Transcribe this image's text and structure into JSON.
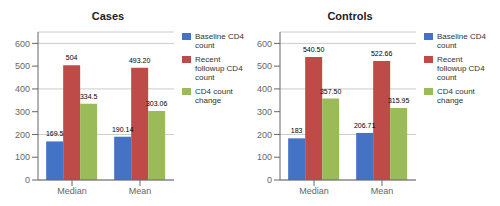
{
  "chart_data": [
    {
      "type": "bar",
      "title": "Cases",
      "categories": [
        "Median",
        "Mean"
      ],
      "series": [
        {
          "name": "Baseline CD4\ncount",
          "color": "#4472C4",
          "values": [
            169.5,
            190.14
          ],
          "value_labels": [
            "169.5",
            "190.14"
          ]
        },
        {
          "name": "Recent\nfollowup CD4\ncount",
          "color": "#BE4B48",
          "values": [
            504,
            493.2
          ],
          "value_labels": [
            "504",
            "493.20"
          ]
        },
        {
          "name": "CD4 count\nchange",
          "color": "#9BBB59",
          "values": [
            334.5,
            303.06
          ],
          "value_labels": [
            "334.5",
            "303.06"
          ]
        }
      ],
      "ylim": [
        0,
        650
      ],
      "yticks": [
        0,
        100,
        200,
        300,
        400,
        500,
        600
      ],
      "grid": true,
      "data_labels": true,
      "legend": "right"
    },
    {
      "type": "bar",
      "title": "Controls",
      "categories": [
        "Median",
        "Mean"
      ],
      "series": [
        {
          "name": "Baseline CD4\ncount",
          "color": "#4472C4",
          "values": [
            183,
            206.71
          ],
          "value_labels": [
            "183",
            "206.71"
          ]
        },
        {
          "name": "Recent\nfollowup CD4\ncount",
          "color": "#BE4B48",
          "values": [
            540.5,
            522.66
          ],
          "value_labels": [
            "540.50",
            "522.66"
          ]
        },
        {
          "name": "CD4 count\nchange",
          "color": "#9BBB59",
          "values": [
            357.5,
            315.95
          ],
          "value_labels": [
            "357.50",
            "315.95"
          ]
        }
      ],
      "ylim": [
        0,
        650
      ],
      "yticks": [
        0,
        100,
        200,
        300,
        400,
        500,
        600
      ],
      "grid": true,
      "data_labels": true,
      "legend": "right"
    }
  ]
}
